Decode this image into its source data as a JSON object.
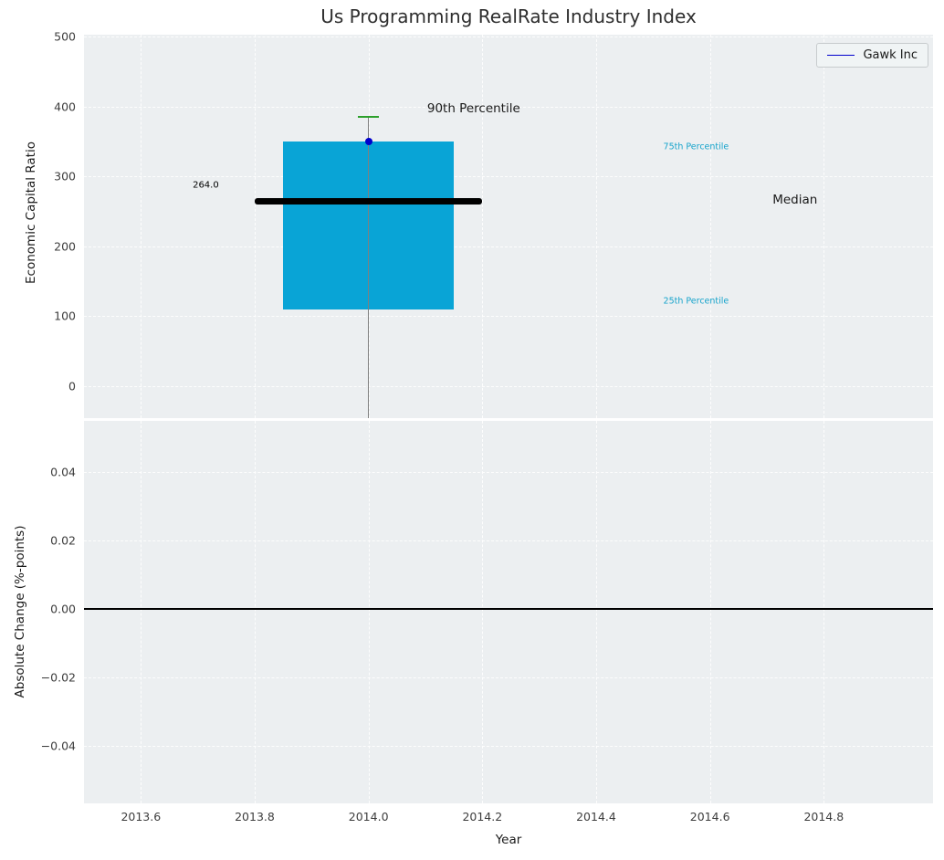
{
  "title": "Us Programming RealRate Industry Index",
  "legend": {
    "label": "Gawk Inc",
    "line_color": "#0000cc",
    "position": "upper right"
  },
  "colors": {
    "figure_bg": "#ffffff",
    "plot_bg": "#eceff1",
    "grid": "#ffffff",
    "box_fill": "#09a4d6",
    "median_line": "#000000",
    "whisker_cap": "#2ca02c",
    "whisker_stem": "#7f7f7f",
    "marker": "#0000cd",
    "zero_line": "#000000",
    "tick_label": "#3d3d3d",
    "axis_label": "#1a1a1a",
    "title_color": "#2e2e2e",
    "percentile_label": "#16a3cb",
    "legend_bg": "#f0f4f5",
    "legend_border": "#c7cbcd"
  },
  "chart_data": [
    {
      "type": "box",
      "panel": "top",
      "title": "Us Programming RealRate Industry Index",
      "ylabel": "Economic Capital Ratio",
      "xlim": [
        2013.5,
        2014.992
      ],
      "ylim": [
        -46,
        503
      ],
      "grid": true,
      "legend": {
        "labels": [
          "Gawk Inc"
        ],
        "position": "upper right"
      },
      "yticks": [
        {
          "value": 0,
          "label": "0"
        },
        {
          "value": 100,
          "label": "100"
        },
        {
          "value": 200,
          "label": "200"
        },
        {
          "value": 300,
          "label": "300"
        },
        {
          "value": 400,
          "label": "400"
        },
        {
          "value": 500,
          "label": "500"
        }
      ],
      "series": [
        {
          "name": "Gawk Inc",
          "x": 2014.0,
          "q1": 110,
          "median": 264,
          "q3": 350,
          "p90": 385,
          "box_half_width": 0.15,
          "median_half_width": 0.2,
          "cap_half_width": 0.018,
          "marker": {
            "x": 2014.0,
            "y": 350
          }
        }
      ],
      "annotations": [
        {
          "text": "264.0",
          "x": 2013.737,
          "y": 287,
          "color": "#000000",
          "size": 10,
          "align": "right"
        },
        {
          "text": "90th Percentile",
          "x": 2014.103,
          "y": 397,
          "color": "#1a1a1a",
          "size": 13.5,
          "align": "left"
        },
        {
          "text": "75th Percentile",
          "x": 2014.518,
          "y": 342,
          "color": "#16a3cb",
          "size": 9.5,
          "align": "left"
        },
        {
          "text": "Median",
          "x": 2014.71,
          "y": 266,
          "color": "#1a1a1a",
          "size": 13.5,
          "align": "left"
        },
        {
          "text": "25th Percentile",
          "x": 2014.518,
          "y": 121,
          "color": "#16a3cb",
          "size": 9.5,
          "align": "left"
        }
      ]
    },
    {
      "type": "line",
      "panel": "bottom",
      "xlabel": "Year",
      "ylabel": "Absolute Change (%-points)",
      "xlim": [
        2013.5,
        2014.992
      ],
      "ylim": [
        -0.0568,
        0.0549
      ],
      "grid": true,
      "zero_line": 0.0,
      "series": [],
      "yticks": [
        {
          "value": 0.04,
          "label": "0.04"
        },
        {
          "value": 0.02,
          "label": "0.02"
        },
        {
          "value": 0.0,
          "label": "0.00"
        },
        {
          "value": -0.02,
          "label": "−0.02"
        },
        {
          "value": -0.04,
          "label": "−0.04"
        }
      ],
      "xticks": [
        {
          "value": 2013.6,
          "label": "2013.6"
        },
        {
          "value": 2013.8,
          "label": "2013.8"
        },
        {
          "value": 2014.0,
          "label": "2014.0"
        },
        {
          "value": 2014.2,
          "label": "2014.2"
        },
        {
          "value": 2014.4,
          "label": "2014.4"
        },
        {
          "value": 2014.6,
          "label": "2014.6"
        },
        {
          "value": 2014.8,
          "label": "2014.8"
        }
      ]
    }
  ]
}
